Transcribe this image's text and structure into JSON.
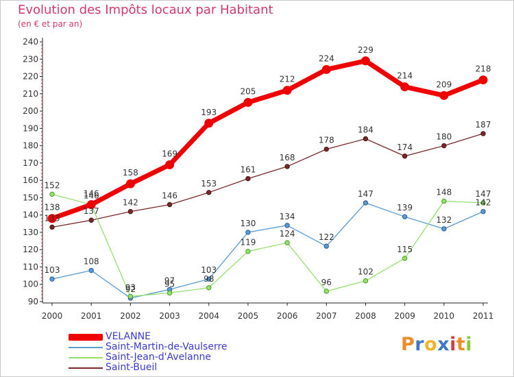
{
  "header": {
    "title": "Evolution des Impôts locaux par Habitant",
    "subtitle": "(en € et par an)"
  },
  "logo": {
    "letters": [
      {
        "ch": "P",
        "color": "#f08c28"
      },
      {
        "ch": "r",
        "color": "#3c78c8"
      },
      {
        "ch": "o",
        "color": "#f0b428"
      },
      {
        "ch": "x",
        "color": "#3c78c8"
      },
      {
        "ch": "i",
        "color": "#d23c3c"
      },
      {
        "ch": "t",
        "color": "#f08c28"
      },
      {
        "ch": "i",
        "color": "#8cc83c"
      }
    ]
  },
  "chart_data": {
    "type": "line",
    "title": "Evolution des Impôts locaux par Habitant",
    "subtitle": "(en € et par an)",
    "x": [
      "2000",
      "2001",
      "2002",
      "2003",
      "2004",
      "2005",
      "2006",
      "2007",
      "2008",
      "2009",
      "2010",
      "2011"
    ],
    "ylim": [
      90,
      240
    ],
    "yticks": [
      90,
      100,
      110,
      120,
      130,
      140,
      150,
      160,
      170,
      180,
      190,
      200,
      210,
      220,
      230,
      240
    ],
    "grid": false,
    "legend_position": "bottom-left",
    "series": [
      {
        "name": "VELANNE",
        "color": "#ee0000",
        "values": [
          138,
          146,
          158,
          169,
          193,
          205,
          212,
          224,
          229,
          214,
          209,
          218
        ]
      },
      {
        "name": "Saint-Martin-de-Vaulserre",
        "color": "#5a9ad2",
        "values": [
          103,
          108,
          92,
          97,
          103,
          130,
          134,
          122,
          147,
          139,
          132,
          142
        ]
      },
      {
        "name": "Saint-Jean-d'Avelanne",
        "color": "#96e06e",
        "values": [
          152,
          146,
          93,
          95,
          98,
          119,
          124,
          96,
          102,
          115,
          148,
          147
        ]
      },
      {
        "name": "Saint-Bueil",
        "color": "#782828",
        "values": [
          133,
          137,
          142,
          146,
          153,
          161,
          168,
          178,
          184,
          174,
          180,
          187
        ]
      }
    ],
    "point_labels": [
      [
        "138",
        "146",
        "158",
        "169",
        "193",
        "205",
        "212",
        "224",
        "229",
        "214",
        "209",
        "218"
      ],
      [
        "103",
        "108",
        "92",
        "97",
        "103",
        "130",
        "134",
        "122",
        "147",
        "139",
        "132",
        "142"
      ],
      [
        "152",
        "146",
        "93",
        "95",
        "98",
        "119",
        "124",
        "96",
        "102",
        "115",
        "148",
        "147"
      ],
      [
        "133",
        "137",
        "142",
        "146",
        "153",
        "161",
        "168",
        "178",
        "184",
        "174",
        "180",
        "187"
      ]
    ]
  }
}
